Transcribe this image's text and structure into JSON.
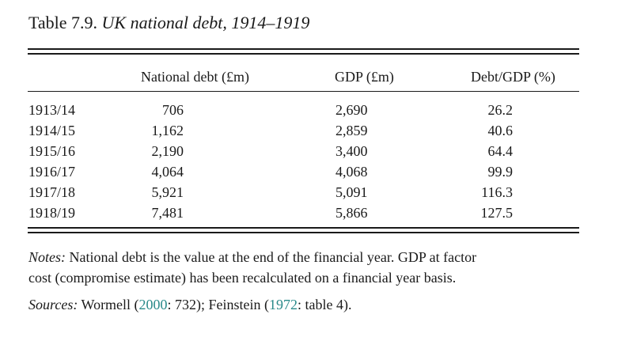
{
  "table": {
    "number": "Table 7.9.",
    "title": "UK national debt, 1914–1919",
    "columns": [
      "National debt (£m)",
      "GDP (£m)",
      "Debt/GDP (%)"
    ],
    "rows": [
      {
        "year": "1913/14",
        "debt": "706",
        "gdp": "2,690",
        "ratio": "26.2"
      },
      {
        "year": "1914/15",
        "debt": "1,162",
        "gdp": "2,859",
        "ratio": "40.6"
      },
      {
        "year": "1915/16",
        "debt": "2,190",
        "gdp": "3,400",
        "ratio": "64.4"
      },
      {
        "year": "1916/17",
        "debt": "4,064",
        "gdp": "4,068",
        "ratio": "99.9"
      },
      {
        "year": "1917/18",
        "debt": "5,921",
        "gdp": "5,091",
        "ratio": "116.3"
      },
      {
        "year": "1918/19",
        "debt": "7,481",
        "gdp": "5,866",
        "ratio": "127.5"
      }
    ]
  },
  "notes": {
    "label": "Notes:",
    "line1": "National debt is the value at the end of the financial year. GDP at factor",
    "line2": "cost (compromise estimate) has been recalculated on a financial year basis."
  },
  "sources": {
    "label": "Sources:",
    "author1": "Wormell (",
    "year1": "2000",
    "page1": ": 732); Feinstein (",
    "year2": "1972",
    "page2": ": table 4)."
  },
  "colors": {
    "text": "#1a1a1a",
    "link": "#2a8a8a"
  }
}
